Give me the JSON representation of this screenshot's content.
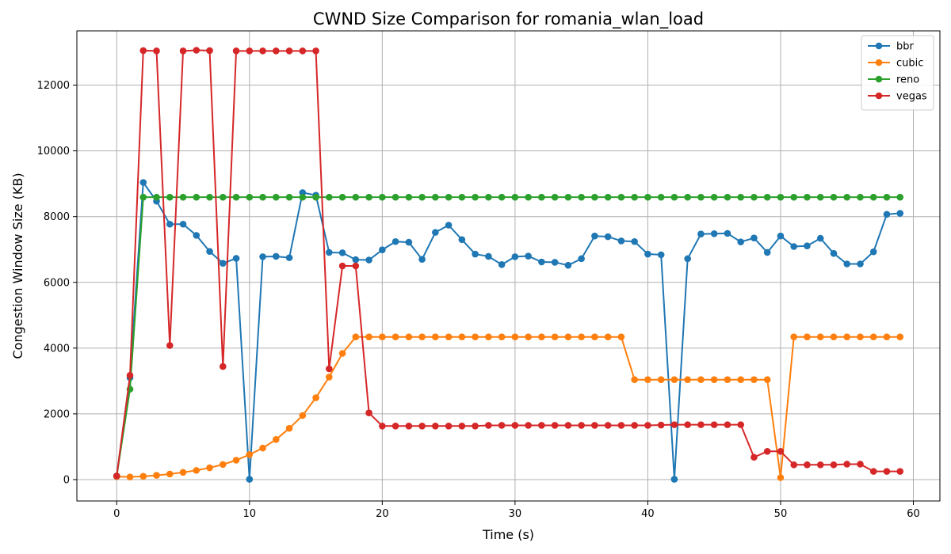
{
  "chart_data": {
    "type": "line",
    "title": "CWND Size Comparison for romania_wlan_load",
    "xlabel": "Time (s)",
    "ylabel": "Congestion Window Size (KB)",
    "xlim": [
      -3,
      62
    ],
    "ylim": [
      -650,
      13650
    ],
    "xticks": [
      0,
      10,
      20,
      30,
      40,
      50,
      60
    ],
    "yticks": [
      0,
      2000,
      4000,
      6000,
      8000,
      10000,
      12000
    ],
    "grid": true,
    "legend_position": "top-right",
    "x": [
      0,
      1,
      2,
      3,
      4,
      5,
      6,
      7,
      8,
      9,
      10,
      11,
      12,
      13,
      14,
      15,
      16,
      17,
      18,
      19,
      20,
      21,
      22,
      23,
      24,
      25,
      26,
      27,
      28,
      29,
      30,
      31,
      32,
      33,
      34,
      35,
      36,
      37,
      38,
      39,
      40,
      41,
      42,
      43,
      44,
      45,
      46,
      47,
      48,
      49,
      50,
      51,
      52,
      53,
      54,
      55,
      56,
      57,
      58,
      59
    ],
    "series": [
      {
        "name": "bbr",
        "color": "#1f77b4",
        "values": [
          110,
          3100,
          9040,
          8470,
          7770,
          7770,
          7430,
          6940,
          6580,
          6730,
          10,
          6780,
          6790,
          6750,
          8730,
          8650,
          6910,
          6900,
          6690,
          6680,
          6990,
          7240,
          7220,
          6700,
          7520,
          7740,
          7300,
          6860,
          6790,
          6540,
          6780,
          6800,
          6620,
          6610,
          6520,
          6720,
          7410,
          7390,
          7260,
          7240,
          6860,
          6840,
          10,
          6720,
          7470,
          7480,
          7490,
          7230,
          7350,
          6910,
          7410,
          7090,
          7110,
          7340,
          6880,
          6560,
          6560,
          6930,
          8070,
          8100
        ]
      },
      {
        "name": "cubic",
        "color": "#ff7f0e",
        "values": [
          90,
          80,
          100,
          130,
          170,
          220,
          280,
          360,
          460,
          590,
          760,
          960,
          1220,
          1560,
          1950,
          2490,
          3120,
          3840,
          4340,
          4340,
          4340,
          4340,
          4340,
          4340,
          4340,
          4340,
          4340,
          4340,
          4340,
          4340,
          4340,
          4340,
          4340,
          4340,
          4340,
          4340,
          4340,
          4340,
          4340,
          3040,
          3040,
          3040,
          3040,
          3040,
          3040,
          3040,
          3040,
          3040,
          3040,
          3040,
          60,
          4340,
          4340,
          4340,
          4340,
          4340,
          4340,
          4340,
          4340,
          4340
        ]
      },
      {
        "name": "reno",
        "color": "#2ca02c",
        "values": [
          110,
          2750,
          8590,
          8590,
          8590,
          8590,
          8590,
          8590,
          8590,
          8590,
          8590,
          8590,
          8590,
          8590,
          8590,
          8590,
          8590,
          8590,
          8590,
          8590,
          8590,
          8590,
          8590,
          8590,
          8590,
          8590,
          8590,
          8590,
          8590,
          8590,
          8590,
          8590,
          8590,
          8590,
          8590,
          8590,
          8590,
          8590,
          8590,
          8590,
          8590,
          8590,
          8590,
          8590,
          8590,
          8590,
          8590,
          8590,
          8590,
          8590,
          8590,
          8590,
          8590,
          8590,
          8590,
          8590,
          8590,
          8590,
          8590,
          8590
        ]
      },
      {
        "name": "vegas",
        "color": "#d62728",
        "values": [
          110,
          3170,
          13050,
          13040,
          4080,
          13040,
          13060,
          13050,
          3440,
          13040,
          13040,
          13040,
          13040,
          13040,
          13040,
          13040,
          3370,
          6500,
          6500,
          2030,
          1630,
          1630,
          1630,
          1630,
          1630,
          1630,
          1630,
          1630,
          1650,
          1650,
          1650,
          1650,
          1650,
          1650,
          1650,
          1650,
          1650,
          1650,
          1650,
          1650,
          1650,
          1660,
          1670,
          1670,
          1670,
          1670,
          1670,
          1670,
          680,
          860,
          860,
          450,
          450,
          450,
          450,
          470,
          470,
          250,
          250,
          250
        ]
      }
    ]
  }
}
